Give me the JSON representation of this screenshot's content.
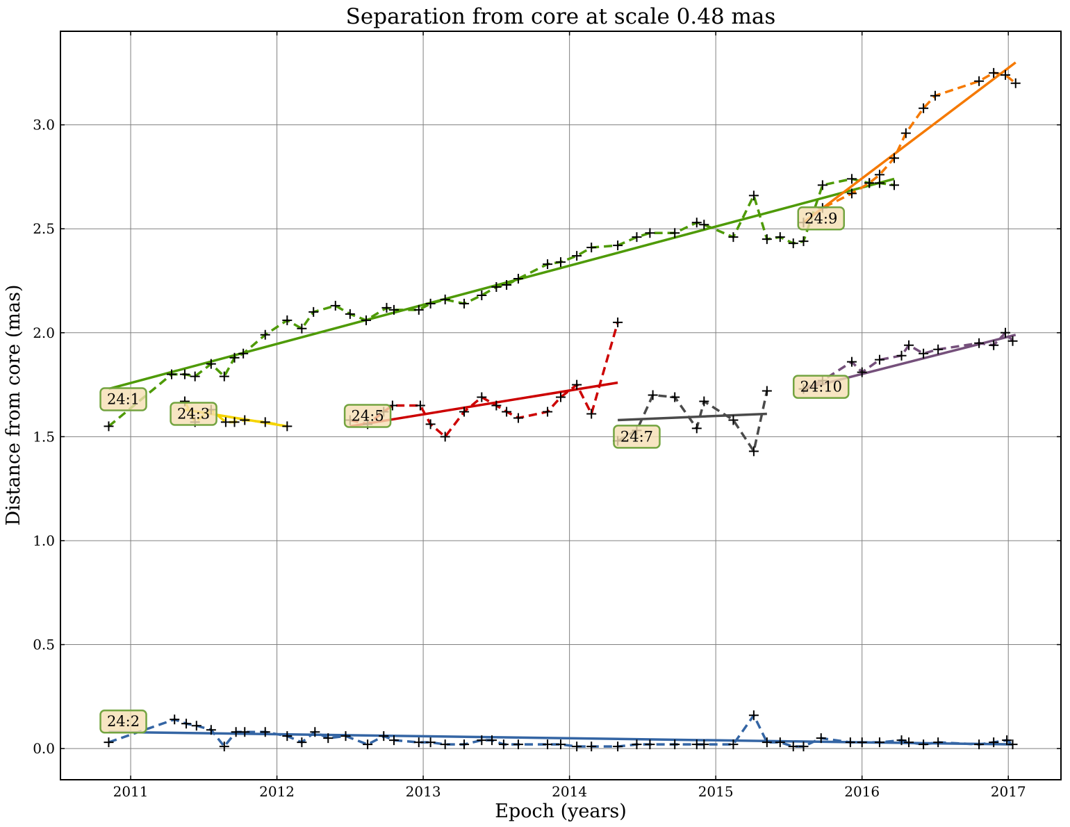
{
  "chart_data": {
    "type": "line",
    "title": "Separation from core at scale 0.48 mas",
    "xlabel": "Epoch (years)",
    "ylabel": "Distance from core (mas)",
    "xlim": [
      2010.52,
      2017.36
    ],
    "ylim": [
      -0.15,
      3.45
    ],
    "xticks": [
      2011,
      2012,
      2013,
      2014,
      2015,
      2016,
      2017
    ],
    "yticks": [
      0.0,
      0.5,
      1.0,
      1.5,
      2.0,
      2.5,
      3.0
    ],
    "xtick_labels": [
      "2011",
      "2012",
      "2013",
      "2014",
      "2015",
      "2016",
      "2017"
    ],
    "ytick_labels": [
      "0.0",
      "0.5",
      "1.0",
      "1.5",
      "2.0",
      "2.5",
      "3.0"
    ],
    "grid": true,
    "legend": "none",
    "components": [
      {
        "label": "24:1",
        "color": "#4e9a06",
        "label_pos": [
          2010.95,
          1.68
        ],
        "x": [
          2010.85,
          2011.28,
          2011.37,
          2011.44,
          2011.55,
          2011.64,
          2011.71,
          2011.77,
          2011.92,
          2012.07,
          2012.17,
          2012.25,
          2012.4,
          2012.5,
          2012.61,
          2012.75,
          2012.8,
          2012.97,
          2013.05,
          2013.15,
          2013.28,
          2013.4,
          2013.5,
          2013.57,
          2013.65,
          2013.85,
          2013.94,
          2014.05,
          2014.15,
          2014.33,
          2014.46,
          2014.55,
          2014.72,
          2014.87,
          2014.92,
          2015.12,
          2015.26,
          2015.35,
          2015.44,
          2015.53,
          2015.6,
          2015.73,
          2015.93,
          2016.05,
          2016.12,
          2016.22
        ],
        "y": [
          1.55,
          1.8,
          1.8,
          1.79,
          1.85,
          1.79,
          1.88,
          1.9,
          1.99,
          2.06,
          2.02,
          2.1,
          2.13,
          2.09,
          2.06,
          2.12,
          2.11,
          2.11,
          2.14,
          2.16,
          2.14,
          2.18,
          2.22,
          2.23,
          2.26,
          2.33,
          2.34,
          2.37,
          2.41,
          2.42,
          2.46,
          2.48,
          2.48,
          2.53,
          2.52,
          2.46,
          2.66,
          2.45,
          2.46,
          2.43,
          2.44,
          2.71,
          2.74,
          2.72,
          2.72,
          2.71
        ],
        "fit": [
          [
            2010.85,
            1.73
          ],
          [
            2016.22,
            2.74
          ]
        ]
      },
      {
        "label": "24:2",
        "color": "#3465a4",
        "label_pos": [
          2010.95,
          0.13
        ],
        "x": [
          2010.85,
          2011.3,
          2011.38,
          2011.45,
          2011.55,
          2011.64,
          2011.72,
          2011.78,
          2011.92,
          2012.07,
          2012.17,
          2012.26,
          2012.35,
          2012.47,
          2012.62,
          2012.73,
          2012.8,
          2012.97,
          2013.05,
          2013.15,
          2013.28,
          2013.4,
          2013.47,
          2013.55,
          2013.65,
          2013.85,
          2013.94,
          2014.05,
          2014.15,
          2014.33,
          2014.46,
          2014.55,
          2014.72,
          2014.87,
          2014.92,
          2015.12,
          2015.26,
          2015.35,
          2015.44,
          2015.53,
          2015.6,
          2015.72,
          2015.92,
          2016.0,
          2016.12,
          2016.27,
          2016.32,
          2016.42,
          2016.52,
          2016.8,
          2016.9,
          2016.99,
          2017.03
        ],
        "y": [
          0.03,
          0.14,
          0.12,
          0.11,
          0.09,
          0.01,
          0.08,
          0.08,
          0.08,
          0.06,
          0.03,
          0.08,
          0.05,
          0.06,
          0.02,
          0.06,
          0.04,
          0.03,
          0.03,
          0.02,
          0.02,
          0.04,
          0.04,
          0.02,
          0.02,
          0.02,
          0.02,
          0.01,
          0.01,
          0.01,
          0.02,
          0.02,
          0.02,
          0.02,
          0.02,
          0.02,
          0.16,
          0.03,
          0.03,
          0.01,
          0.01,
          0.05,
          0.03,
          0.03,
          0.03,
          0.04,
          0.03,
          0.02,
          0.03,
          0.02,
          0.03,
          0.04,
          0.02
        ],
        "fit": [
          [
            2010.85,
            0.08
          ],
          [
            2017.03,
            0.02
          ]
        ]
      },
      {
        "label": "24:3",
        "color": "#f5d400",
        "label_pos": [
          2011.43,
          1.61
        ],
        "x": [
          2011.37,
          2011.44,
          2011.55,
          2011.65,
          2011.71,
          2011.78,
          2011.92,
          2012.07
        ],
        "y": [
          1.67,
          1.57,
          1.63,
          1.57,
          1.57,
          1.58,
          1.57,
          1.55
        ],
        "fit": [
          [
            2011.37,
            1.63
          ],
          [
            2012.07,
            1.55
          ]
        ]
      },
      {
        "label": "24:5",
        "color": "#cc0000",
        "label_pos": [
          2012.62,
          1.6
        ],
        "x": [
          2012.5,
          2012.62,
          2012.73,
          2012.79,
          2012.98,
          2013.05,
          2013.15,
          2013.28,
          2013.4,
          2013.5,
          2013.57,
          2013.65,
          2013.85,
          2013.94,
          2014.05,
          2014.15,
          2014.33
        ],
        "y": [
          1.58,
          1.56,
          1.62,
          1.65,
          1.65,
          1.56,
          1.5,
          1.62,
          1.69,
          1.65,
          1.62,
          1.59,
          1.62,
          1.69,
          1.75,
          1.61,
          2.05
        ],
        "fit": [
          [
            2012.5,
            1.55
          ],
          [
            2014.33,
            1.76
          ]
        ]
      },
      {
        "label": "24:7",
        "color": "#4a4a4a",
        "label_pos": [
          2014.46,
          1.5
        ],
        "x": [
          2014.33,
          2014.46,
          2014.57,
          2014.72,
          2014.87,
          2014.92,
          2015.12,
          2015.26,
          2015.35
        ],
        "y": [
          1.48,
          1.53,
          1.7,
          1.69,
          1.54,
          1.67,
          1.58,
          1.43,
          1.72
        ],
        "fit": [
          [
            2014.33,
            1.58
          ],
          [
            2015.35,
            1.61
          ]
        ]
      },
      {
        "label": "24:9",
        "color": "#f57900",
        "label_pos": [
          2015.72,
          2.55
        ],
        "x": [
          2015.6,
          2015.73,
          2015.93,
          2016.05,
          2016.12,
          2016.22,
          2016.3,
          2016.42,
          2016.5,
          2016.8,
          2016.9,
          2016.98,
          2017.05
        ],
        "y": [
          2.53,
          2.6,
          2.67,
          2.72,
          2.76,
          2.84,
          2.96,
          3.08,
          3.14,
          3.21,
          3.25,
          3.24,
          3.2
        ],
        "fit": [
          [
            2015.6,
            2.53
          ],
          [
            2017.05,
            3.3
          ]
        ]
      },
      {
        "label": "24:10",
        "color": "#75507b",
        "label_pos": [
          2015.72,
          1.74
        ],
        "x": [
          2015.6,
          2015.73,
          2015.93,
          2016.0,
          2016.12,
          2016.27,
          2016.32,
          2016.42,
          2016.52,
          2016.8,
          2016.9,
          2016.98,
          2017.03
        ],
        "y": [
          1.73,
          1.77,
          1.86,
          1.81,
          1.87,
          1.89,
          1.94,
          1.9,
          1.92,
          1.95,
          1.94,
          2.0,
          1.96
        ],
        "fit": [
          [
            2015.6,
            1.73
          ],
          [
            2017.05,
            1.99
          ]
        ]
      }
    ]
  }
}
